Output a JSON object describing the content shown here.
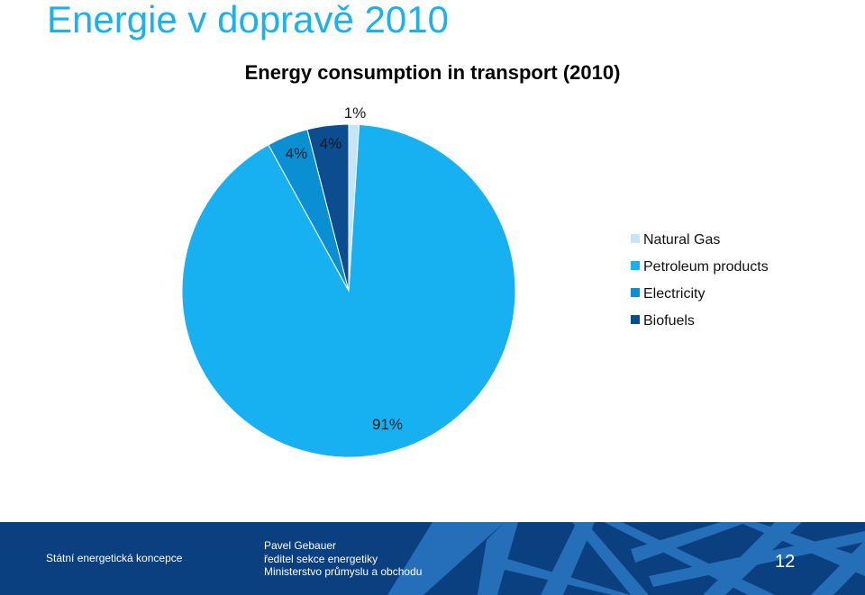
{
  "slide": {
    "title": "Energie v dopravě 2010"
  },
  "colors": {
    "title": "#19b1ee",
    "footer_bg": "#0a3f80"
  },
  "chart_data": {
    "type": "pie",
    "title": "Energy consumption in transport (2010)",
    "slices": [
      {
        "name": "Natural Gas",
        "value": 1,
        "label": "1%",
        "color": "#c5e4f5"
      },
      {
        "name": "Petroleum products",
        "value": 91,
        "label": "91%",
        "color": "#17b0f1"
      },
      {
        "name": "Electricity",
        "value": 4,
        "label": "4%",
        "color": "#0a8fd2"
      },
      {
        "name": "Biofuels",
        "value": 4,
        "label": "4%",
        "color": "#0b4d8f"
      }
    ],
    "legend_position": "right"
  },
  "footer": {
    "left_text": "Státní energetická koncepce",
    "presenter_name": "Pavel Gebauer",
    "presenter_role": "ředitel sekce energetiky",
    "presenter_org": "Ministerstvo  průmyslu a obchodu",
    "page_number": "12"
  }
}
